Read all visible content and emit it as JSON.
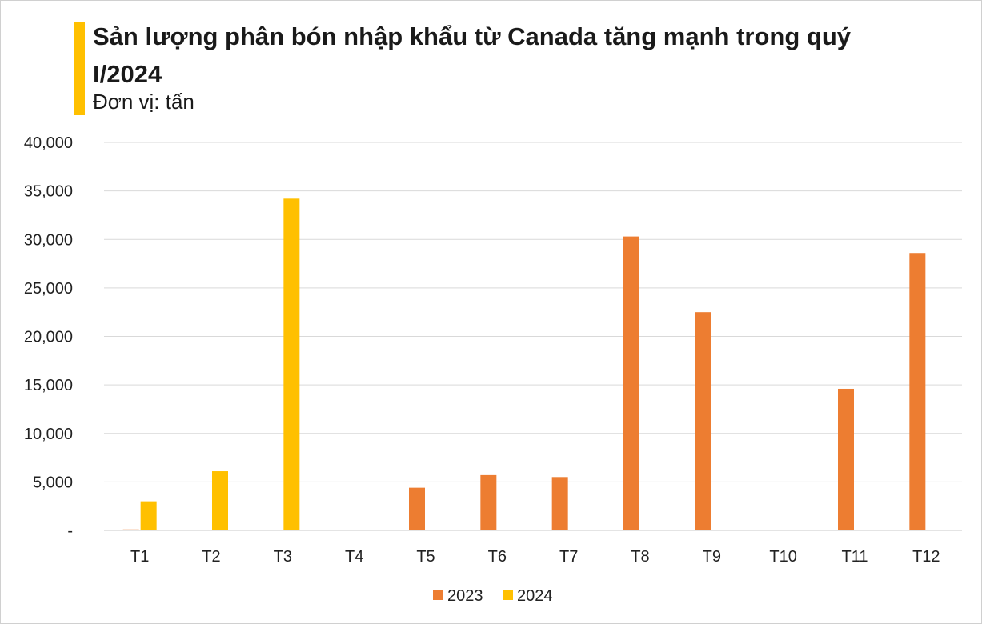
{
  "chart_data": {
    "type": "bar",
    "title": "Sản lượng phân bón nhập khẩu từ Canada tăng mạnh trong quý I/2024",
    "subtitle": "Đơn vị: tấn",
    "xlabel": "",
    "ylabel": "",
    "ylim": [
      0,
      40000
    ],
    "yticks": [
      0,
      5000,
      10000,
      15000,
      20000,
      25000,
      30000,
      35000,
      40000
    ],
    "ytick_labels": [
      "-",
      "5,000",
      "10,000",
      "15,000",
      "20,000",
      "25,000",
      "30,000",
      "35,000",
      "40,000"
    ],
    "grid": true,
    "legend_position": "bottom",
    "categories": [
      "T1",
      "T2",
      "T3",
      "T4",
      "T5",
      "T6",
      "T7",
      "T8",
      "T9",
      "T10",
      "T11",
      "T12"
    ],
    "series": [
      {
        "name": "2023",
        "color": "#ED7D31",
        "values": [
          100,
          0,
          0,
          0,
          4400,
          5700,
          5500,
          30300,
          22500,
          0,
          14600,
          28600
        ]
      },
      {
        "name": "2024",
        "color": "#FFC000",
        "values": [
          3000,
          6100,
          34200,
          null,
          null,
          null,
          null,
          null,
          null,
          null,
          null,
          null
        ]
      }
    ]
  },
  "accent_color": "#FFC000"
}
